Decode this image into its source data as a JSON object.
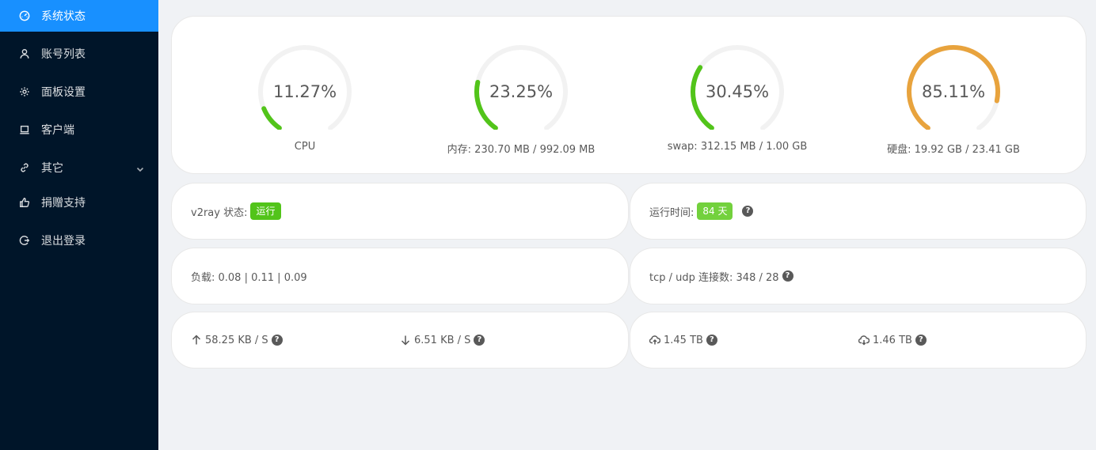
{
  "sidebar": {
    "items": [
      {
        "label": "系统状态",
        "icon": "dashboard-icon",
        "active": true
      },
      {
        "label": "账号列表",
        "icon": "user-icon"
      },
      {
        "label": "面板设置",
        "icon": "gear-icon"
      },
      {
        "label": "客户端",
        "icon": "laptop-icon"
      },
      {
        "label": "其它",
        "icon": "link-icon"
      },
      {
        "label": "捐赠支持",
        "icon": "like-icon"
      },
      {
        "label": "退出登录",
        "icon": "logout-icon"
      }
    ]
  },
  "gauges": [
    {
      "value_text": "11.27%",
      "percent": 11.27,
      "label": "CPU",
      "color": "#52c41a"
    },
    {
      "value_text": "23.25%",
      "percent": 23.25,
      "label": "内存: 230.70 MB / 992.09 MB",
      "color": "#52c41a"
    },
    {
      "value_text": "30.45%",
      "percent": 30.45,
      "label": "swap: 312.15 MB / 1.00 GB",
      "color": "#52c41a"
    },
    {
      "value_text": "85.11%",
      "percent": 85.11,
      "label": "硬盘: 19.92 GB / 23.41 GB",
      "color": "#e8a33d"
    }
  ],
  "status": {
    "v2ray_label": "v2ray 状态:",
    "v2ray_tag": "运行",
    "uptime_label": "运行时间:",
    "uptime_tag": "84 天",
    "help": "?"
  },
  "load": {
    "text": "负载: 0.08 | 0.11 | 0.09",
    "conn_text": "tcp / udp 连接数: 348 / 28"
  },
  "traffic": {
    "up_speed": "58.25 KB / S",
    "down_speed": "6.51 KB / S",
    "sent_total": "1.45 TB",
    "recv_total": "1.46 TB"
  },
  "colors": {
    "accent": "#1890ff",
    "sidebar_bg": "#001529",
    "success": "#52c41a",
    "warning": "#e8a33d"
  }
}
